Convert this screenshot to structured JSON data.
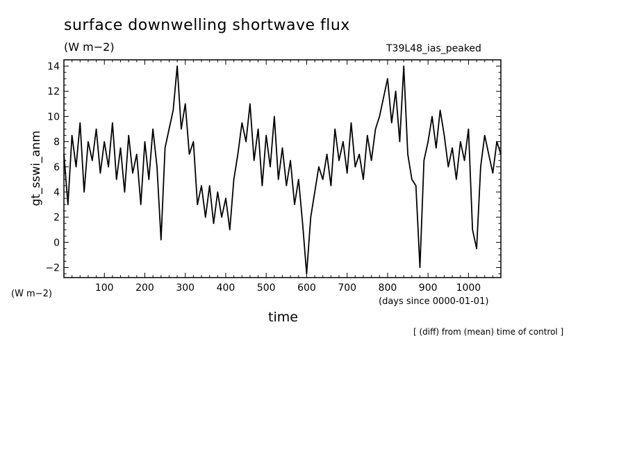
{
  "chart_data": {
    "type": "line",
    "title": "surface downwelling shortwave flux",
    "title_unit": "(W m−2)",
    "run_id": "T39L48_ias_peaked",
    "ylabel": "gt_sswi_anm",
    "ylabel_unit": "(W m−2)",
    "xlabel": "time",
    "xlabel_unit": "(days since 0000-01-01)",
    "footnote": "[ (diff) from (mean) time of control ]",
    "xlim": [
      0,
      1080
    ],
    "ylim": [
      -2.8,
      14.5
    ],
    "x_ticks": [
      100,
      200,
      300,
      400,
      500,
      600,
      700,
      800,
      900,
      1000
    ],
    "x_tick_labels": [
      "100",
      "200",
      "300",
      "400",
      "500",
      "600",
      "700",
      "800",
      "900",
      "1000"
    ],
    "y_ticks": [
      -2,
      0,
      2,
      4,
      6,
      8,
      10,
      12,
      14
    ],
    "y_tick_labels": [
      "−2",
      "0",
      "2",
      "4",
      "6",
      "8",
      "10",
      "12",
      "14"
    ],
    "grid": false,
    "legend": "none",
    "series": [
      {
        "color": "#000000",
        "x": [
          0,
          10,
          20,
          30,
          40,
          50,
          60,
          70,
          80,
          90,
          100,
          110,
          120,
          130,
          140,
          150,
          160,
          170,
          180,
          190,
          200,
          210,
          220,
          230,
          240,
          250,
          260,
          270,
          280,
          290,
          300,
          310,
          320,
          330,
          340,
          350,
          360,
          370,
          380,
          390,
          400,
          410,
          420,
          430,
          440,
          450,
          460,
          470,
          480,
          490,
          500,
          510,
          520,
          530,
          540,
          550,
          560,
          570,
          580,
          590,
          600,
          610,
          620,
          630,
          640,
          650,
          660,
          670,
          680,
          690,
          700,
          710,
          720,
          730,
          740,
          750,
          760,
          770,
          780,
          790,
          800,
          810,
          820,
          830,
          840,
          850,
          860,
          870,
          880,
          890,
          900,
          910,
          920,
          930,
          940,
          950,
          960,
          970,
          980,
          990,
          1000,
          1010,
          1020,
          1030,
          1040,
          1050,
          1060,
          1070,
          1080
        ],
        "y": [
          7.0,
          3.0,
          8.5,
          6.0,
          9.5,
          4.0,
          8.0,
          6.5,
          9.0,
          5.5,
          8.0,
          6.0,
          9.5,
          5.0,
          7.5,
          4.0,
          8.5,
          5.5,
          7.0,
          3.0,
          8.0,
          5.0,
          9.0,
          6.0,
          0.2,
          7.5,
          9.0,
          10.5,
          14.0,
          9.0,
          11.0,
          7.0,
          8.0,
          3.0,
          4.5,
          2.0,
          4.5,
          1.5,
          4.0,
          2.0,
          3.5,
          1.0,
          5.0,
          7.0,
          9.5,
          8.0,
          11.0,
          6.5,
          9.0,
          4.5,
          8.5,
          6.0,
          10.0,
          5.0,
          7.5,
          4.5,
          6.5,
          3.0,
          5.0,
          1.5,
          -2.5,
          2.0,
          4.0,
          6.0,
          5.0,
          7.0,
          4.5,
          9.0,
          6.5,
          8.0,
          5.5,
          9.5,
          6.0,
          7.0,
          5.0,
          8.5,
          6.5,
          9.0,
          10.0,
          11.5,
          13.0,
          9.5,
          12.0,
          8.0,
          14.0,
          7.0,
          5.0,
          4.5,
          -2.0,
          6.5,
          8.0,
          10.0,
          7.5,
          10.5,
          8.5,
          6.0,
          7.5,
          5.0,
          8.0,
          6.5,
          9.0,
          1.0,
          -0.5,
          6.0,
          8.5,
          7.0,
          5.5,
          8.0,
          7.0
        ]
      }
    ]
  }
}
